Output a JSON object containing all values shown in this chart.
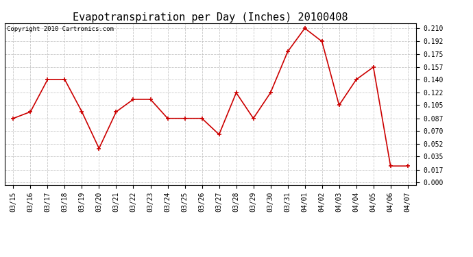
{
  "title": "Evapotranspiration per Day (Inches) 20100408",
  "copyright": "Copyright 2010 Cartronics.com",
  "dates": [
    "03/15",
    "03/16",
    "03/17",
    "03/18",
    "03/19",
    "03/20",
    "03/21",
    "03/22",
    "03/23",
    "03/24",
    "03/25",
    "03/26",
    "03/27",
    "03/28",
    "03/29",
    "03/30",
    "03/31",
    "04/01",
    "04/02",
    "04/03",
    "04/04",
    "04/05",
    "04/06",
    "04/07"
  ],
  "values": [
    0.087,
    0.096,
    0.14,
    0.14,
    0.096,
    0.046,
    0.096,
    0.113,
    0.113,
    0.087,
    0.087,
    0.087,
    0.065,
    0.122,
    0.087,
    0.122,
    0.178,
    0.21,
    0.192,
    0.105,
    0.14,
    0.157,
    0.022,
    0.022
  ],
  "line_color": "#cc0000",
  "marker": "+",
  "marker_size": 5,
  "yticks": [
    0.0,
    0.017,
    0.035,
    0.052,
    0.07,
    0.087,
    0.105,
    0.122,
    0.14,
    0.157,
    0.175,
    0.192,
    0.21
  ],
  "background_color": "#ffffff",
  "plot_bg_color": "#ffffff",
  "grid_color": "#bbbbbb",
  "title_fontsize": 11,
  "copyright_fontsize": 6.5,
  "tick_fontsize": 7,
  "ymin": -0.004,
  "ymax": 0.217
}
